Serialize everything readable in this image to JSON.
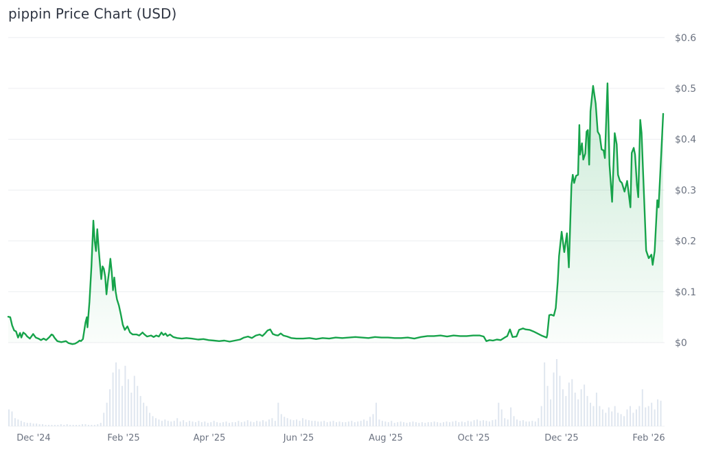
{
  "header": {
    "title": "pippin Price Chart (USD)"
  },
  "colors": {
    "line": "#16a34a",
    "fill": "#16a34a",
    "grid": "#eceef1",
    "volume": "#dfe6ef",
    "axis_text": "#6b7280"
  },
  "chart_data": {
    "type": "line",
    "title": "pippin Price Chart (USD)",
    "xlabel": "",
    "ylabel": "Price (USD)",
    "ylim": [
      0,
      0.6
    ],
    "y_ticks": [
      "$0",
      "$0.1",
      "$0.2",
      "$0.3",
      "$0.4",
      "$0.5",
      "$0.6"
    ],
    "y_tick_values": [
      0,
      0.1,
      0.2,
      0.3,
      0.4,
      0.5,
      0.6
    ],
    "x_ticks": [
      "Dec '24",
      "Feb '25",
      "Apr '25",
      "Jun '25",
      "Aug '25",
      "Oct '25",
      "Dec '25",
      "Feb '26"
    ],
    "grid": true,
    "legend": null,
    "series": [
      {
        "name": "Price",
        "note": "x as fraction of time range [0..1], y in USD",
        "points": [
          [
            0.0,
            0.051
          ],
          [
            0.003,
            0.05
          ],
          [
            0.006,
            0.034
          ],
          [
            0.009,
            0.024
          ],
          [
            0.012,
            0.022
          ],
          [
            0.015,
            0.01
          ],
          [
            0.018,
            0.019
          ],
          [
            0.02,
            0.01
          ],
          [
            0.023,
            0.02
          ],
          [
            0.026,
            0.017
          ],
          [
            0.029,
            0.012
          ],
          [
            0.033,
            0.008
          ],
          [
            0.038,
            0.017
          ],
          [
            0.042,
            0.01
          ],
          [
            0.046,
            0.008
          ],
          [
            0.05,
            0.005
          ],
          [
            0.054,
            0.008
          ],
          [
            0.058,
            0.005
          ],
          [
            0.063,
            0.011
          ],
          [
            0.066,
            0.016
          ],
          [
            0.068,
            0.015
          ],
          [
            0.071,
            0.009
          ],
          [
            0.075,
            0.003
          ],
          [
            0.081,
            0.001
          ],
          [
            0.088,
            0.003
          ],
          [
            0.092,
            -0.001
          ],
          [
            0.098,
            -0.003
          ],
          [
            0.102,
            -0.002
          ],
          [
            0.106,
            0.001
          ],
          [
            0.109,
            0.004
          ],
          [
            0.111,
            0.003
          ],
          [
            0.114,
            0.007
          ],
          [
            0.118,
            0.04
          ],
          [
            0.12,
            0.05
          ],
          [
            0.121,
            0.03
          ],
          [
            0.124,
            0.08
          ],
          [
            0.127,
            0.15
          ],
          [
            0.13,
            0.24
          ],
          [
            0.132,
            0.2
          ],
          [
            0.134,
            0.18
          ],
          [
            0.136,
            0.223
          ],
          [
            0.138,
            0.185
          ],
          [
            0.14,
            0.155
          ],
          [
            0.142,
            0.125
          ],
          [
            0.144,
            0.15
          ],
          [
            0.146,
            0.145
          ],
          [
            0.148,
            0.13
          ],
          [
            0.15,
            0.095
          ],
          [
            0.152,
            0.12
          ],
          [
            0.154,
            0.14
          ],
          [
            0.156,
            0.165
          ],
          [
            0.158,
            0.14
          ],
          [
            0.16,
            0.103
          ],
          [
            0.162,
            0.128
          ],
          [
            0.164,
            0.1
          ],
          [
            0.166,
            0.085
          ],
          [
            0.169,
            0.073
          ],
          [
            0.172,
            0.055
          ],
          [
            0.175,
            0.035
          ],
          [
            0.178,
            0.025
          ],
          [
            0.182,
            0.032
          ],
          [
            0.186,
            0.02
          ],
          [
            0.19,
            0.016
          ],
          [
            0.196,
            0.016
          ],
          [
            0.2,
            0.014
          ],
          [
            0.205,
            0.02
          ],
          [
            0.208,
            0.016
          ],
          [
            0.212,
            0.012
          ],
          [
            0.218,
            0.014
          ],
          [
            0.222,
            0.011
          ],
          [
            0.226,
            0.014
          ],
          [
            0.23,
            0.012
          ],
          [
            0.234,
            0.02
          ],
          [
            0.237,
            0.015
          ],
          [
            0.24,
            0.018
          ],
          [
            0.243,
            0.013
          ],
          [
            0.247,
            0.016
          ],
          [
            0.252,
            0.011
          ],
          [
            0.258,
            0.009
          ],
          [
            0.265,
            0.008
          ],
          [
            0.272,
            0.009
          ],
          [
            0.28,
            0.008
          ],
          [
            0.29,
            0.006
          ],
          [
            0.298,
            0.007
          ],
          [
            0.306,
            0.005
          ],
          [
            0.314,
            0.004
          ],
          [
            0.322,
            0.003
          ],
          [
            0.33,
            0.004
          ],
          [
            0.338,
            0.002
          ],
          [
            0.346,
            0.004
          ],
          [
            0.354,
            0.006
          ],
          [
            0.36,
            0.01
          ],
          [
            0.366,
            0.012
          ],
          [
            0.372,
            0.009
          ],
          [
            0.378,
            0.014
          ],
          [
            0.384,
            0.016
          ],
          [
            0.388,
            0.013
          ],
          [
            0.392,
            0.018
          ],
          [
            0.396,
            0.024
          ],
          [
            0.4,
            0.026
          ],
          [
            0.404,
            0.017
          ],
          [
            0.408,
            0.015
          ],
          [
            0.412,
            0.014
          ],
          [
            0.416,
            0.018
          ],
          [
            0.42,
            0.014
          ],
          [
            0.426,
            0.012
          ],
          [
            0.432,
            0.009
          ],
          [
            0.44,
            0.008
          ],
          [
            0.45,
            0.008
          ],
          [
            0.46,
            0.009
          ],
          [
            0.47,
            0.007
          ],
          [
            0.48,
            0.009
          ],
          [
            0.49,
            0.008
          ],
          [
            0.5,
            0.01
          ],
          [
            0.51,
            0.009
          ],
          [
            0.52,
            0.01
          ],
          [
            0.53,
            0.011
          ],
          [
            0.54,
            0.01
          ],
          [
            0.55,
            0.009
          ],
          [
            0.56,
            0.011
          ],
          [
            0.57,
            0.01
          ],
          [
            0.58,
            0.01
          ],
          [
            0.59,
            0.009
          ],
          [
            0.6,
            0.009
          ],
          [
            0.61,
            0.01
          ],
          [
            0.62,
            0.008
          ],
          [
            0.63,
            0.011
          ],
          [
            0.64,
            0.013
          ],
          [
            0.65,
            0.013
          ],
          [
            0.66,
            0.014
          ],
          [
            0.67,
            0.012
          ],
          [
            0.68,
            0.014
          ],
          [
            0.69,
            0.013
          ],
          [
            0.7,
            0.013
          ],
          [
            0.71,
            0.014
          ],
          [
            0.72,
            0.014
          ],
          [
            0.726,
            0.012
          ],
          [
            0.73,
            0.003
          ],
          [
            0.735,
            0.005
          ],
          [
            0.74,
            0.004
          ],
          [
            0.746,
            0.006
          ],
          [
            0.752,
            0.005
          ],
          [
            0.758,
            0.01
          ],
          [
            0.762,
            0.013
          ],
          [
            0.766,
            0.026
          ],
          [
            0.77,
            0.011
          ],
          [
            0.776,
            0.012
          ],
          [
            0.78,
            0.025
          ],
          [
            0.786,
            0.028
          ],
          [
            0.79,
            0.026
          ],
          [
            0.796,
            0.025
          ],
          [
            0.802,
            0.022
          ],
          [
            0.808,
            0.018
          ],
          [
            0.814,
            0.014
          ],
          [
            0.818,
            0.012
          ],
          [
            0.822,
            0.01
          ],
          [
            0.823,
            0.015
          ],
          [
            0.826,
            0.054
          ],
          [
            0.829,
            0.055
          ],
          [
            0.833,
            0.053
          ],
          [
            0.836,
            0.068
          ],
          [
            0.839,
            0.12
          ],
          [
            0.841,
            0.17
          ],
          [
            0.845,
            0.218
          ],
          [
            0.849,
            0.178
          ],
          [
            0.853,
            0.215
          ],
          [
            0.856,
            0.148
          ],
          [
            0.86,
            0.31
          ],
          [
            0.862,
            0.33
          ],
          [
            0.864,
            0.314
          ],
          [
            0.867,
            0.328
          ],
          [
            0.87,
            0.33
          ],
          [
            0.872,
            0.428
          ],
          [
            0.873,
            0.37
          ],
          [
            0.876,
            0.392
          ],
          [
            0.878,
            0.36
          ],
          [
            0.881,
            0.372
          ],
          [
            0.883,
            0.415
          ],
          [
            0.885,
            0.418
          ],
          [
            0.887,
            0.35
          ],
          [
            0.889,
            0.455
          ],
          [
            0.893,
            0.505
          ],
          [
            0.897,
            0.47
          ],
          [
            0.9,
            0.415
          ],
          [
            0.903,
            0.408
          ],
          [
            0.906,
            0.38
          ],
          [
            0.909,
            0.378
          ],
          [
            0.911,
            0.363
          ],
          [
            0.915,
            0.51
          ],
          [
            0.918,
            0.35
          ],
          [
            0.922,
            0.277
          ],
          [
            0.926,
            0.412
          ],
          [
            0.929,
            0.39
          ],
          [
            0.931,
            0.33
          ],
          [
            0.934,
            0.318
          ],
          [
            0.937,
            0.314
          ],
          [
            0.941,
            0.297
          ],
          [
            0.945,
            0.318
          ],
          [
            0.95,
            0.266
          ],
          [
            0.952,
            0.373
          ],
          [
            0.955,
            0.383
          ],
          [
            0.957,
            0.37
          ],
          [
            0.96,
            0.31
          ],
          [
            0.962,
            0.286
          ],
          [
            0.965,
            0.438
          ],
          [
            0.967,
            0.413
          ],
          [
            0.974,
            0.181
          ],
          [
            0.978,
            0.166
          ],
          [
            0.982,
            0.173
          ],
          [
            0.984,
            0.153
          ],
          [
            0.987,
            0.18
          ],
          [
            0.991,
            0.28
          ],
          [
            0.993,
            0.266
          ],
          [
            1.0,
            0.45
          ]
        ]
      },
      {
        "name": "Volume",
        "note": "relative volume 0..1, approximate",
        "values": [
          0.25,
          0.22,
          0.12,
          0.1,
          0.08,
          0.06,
          0.05,
          0.05,
          0.04,
          0.04,
          0.03,
          0.03,
          0.02,
          0.02,
          0.02,
          0.02,
          0.02,
          0.03,
          0.02,
          0.03,
          0.02,
          0.02,
          0.02,
          0.02,
          0.03,
          0.03,
          0.02,
          0.02,
          0.02,
          0.03,
          0.05,
          0.2,
          0.35,
          0.55,
          0.8,
          0.95,
          0.85,
          0.6,
          0.9,
          0.7,
          0.5,
          0.75,
          0.6,
          0.45,
          0.35,
          0.3,
          0.2,
          0.15,
          0.12,
          0.1,
          0.08,
          0.1,
          0.08,
          0.07,
          0.08,
          0.12,
          0.07,
          0.09,
          0.06,
          0.08,
          0.07,
          0.06,
          0.08,
          0.06,
          0.07,
          0.05,
          0.06,
          0.08,
          0.06,
          0.05,
          0.06,
          0.07,
          0.05,
          0.06,
          0.06,
          0.08,
          0.06,
          0.07,
          0.09,
          0.07,
          0.06,
          0.08,
          0.07,
          0.09,
          0.07,
          0.1,
          0.12,
          0.08,
          0.35,
          0.18,
          0.14,
          0.12,
          0.1,
          0.09,
          0.1,
          0.08,
          0.12,
          0.1,
          0.09,
          0.08,
          0.08,
          0.07,
          0.07,
          0.08,
          0.06,
          0.07,
          0.08,
          0.06,
          0.07,
          0.06,
          0.06,
          0.07,
          0.08,
          0.06,
          0.07,
          0.08,
          0.1,
          0.08,
          0.14,
          0.18,
          0.35,
          0.1,
          0.08,
          0.07,
          0.06,
          0.08,
          0.05,
          0.06,
          0.07,
          0.06,
          0.05,
          0.06,
          0.07,
          0.06,
          0.05,
          0.06,
          0.05,
          0.06,
          0.06,
          0.07,
          0.06,
          0.05,
          0.06,
          0.07,
          0.06,
          0.07,
          0.08,
          0.06,
          0.07,
          0.06,
          0.08,
          0.07,
          0.09,
          0.1,
          0.08,
          0.09,
          0.08,
          0.07,
          0.09,
          0.1,
          0.35,
          0.25,
          0.12,
          0.1,
          0.28,
          0.15,
          0.1,
          0.08,
          0.09,
          0.07,
          0.07,
          0.08,
          0.07,
          0.12,
          0.3,
          0.95,
          0.6,
          0.4,
          0.8,
          1.0,
          0.75,
          0.55,
          0.45,
          0.65,
          0.7,
          0.5,
          0.4,
          0.55,
          0.62,
          0.45,
          0.35,
          0.3,
          0.5,
          0.3,
          0.25,
          0.2,
          0.28,
          0.22,
          0.3,
          0.2,
          0.18,
          0.15,
          0.25,
          0.3,
          0.2,
          0.25,
          0.3,
          0.55,
          0.28,
          0.3,
          0.35,
          0.25,
          0.4,
          0.38
        ]
      }
    ]
  }
}
